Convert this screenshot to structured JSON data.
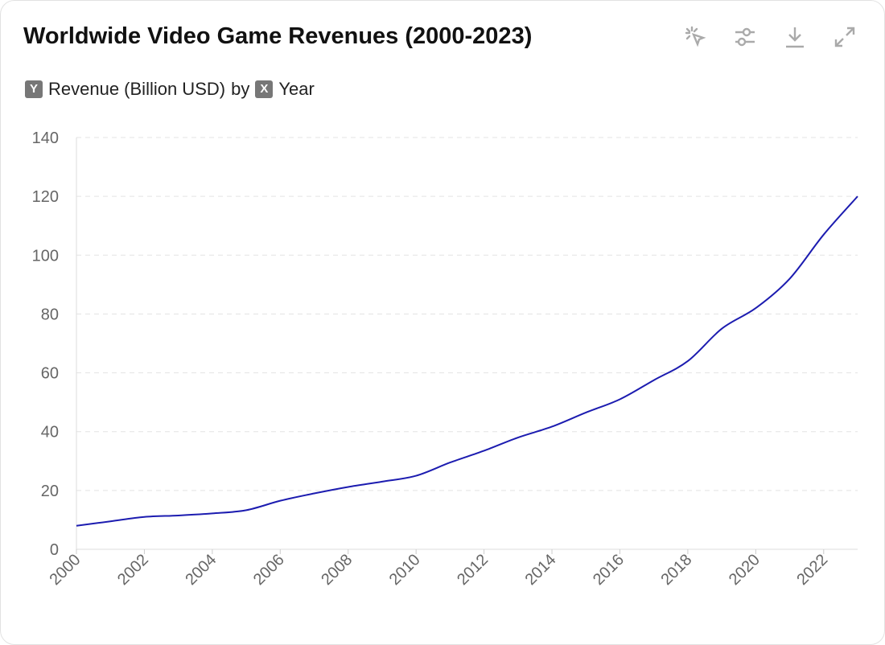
{
  "title": "Worldwide Video Game Revenues (2000-2023)",
  "subtitle": {
    "y_badge": "Y",
    "y_label": "Revenue (Billion USD)",
    "by": "by",
    "x_badge": "X",
    "x_label": "Year"
  },
  "toolbar": [
    "select-icon",
    "settings-sliders-icon",
    "download-icon",
    "expand-icon"
  ],
  "chart_data": {
    "type": "line",
    "title": "Worldwide Video Game Revenues (2000-2023)",
    "xlabel": "Year",
    "ylabel": "Revenue (Billion USD)",
    "x": [
      2000,
      2001,
      2002,
      2003,
      2004,
      2005,
      2006,
      2007,
      2008,
      2009,
      2010,
      2011,
      2012,
      2013,
      2014,
      2015,
      2016,
      2017,
      2018,
      2019,
      2020,
      2021,
      2022,
      2023
    ],
    "values": [
      8,
      9.5,
      11,
      11.5,
      12.2,
      13.3,
      16.5,
      19,
      21.2,
      23,
      25,
      29.5,
      33.5,
      38,
      41.7,
      46.5,
      51,
      57.5,
      64,
      75,
      82,
      92,
      107,
      120
    ],
    "ylim": [
      0,
      140
    ],
    "yticks": [
      0,
      20,
      40,
      60,
      80,
      100,
      120,
      140
    ],
    "xticks": [
      "2000",
      "2002",
      "2004",
      "2006",
      "2008",
      "2010",
      "2012",
      "2014",
      "2016",
      "2018",
      "2020",
      "2022"
    ],
    "grid": true,
    "line_color": "#1c1cb0"
  }
}
